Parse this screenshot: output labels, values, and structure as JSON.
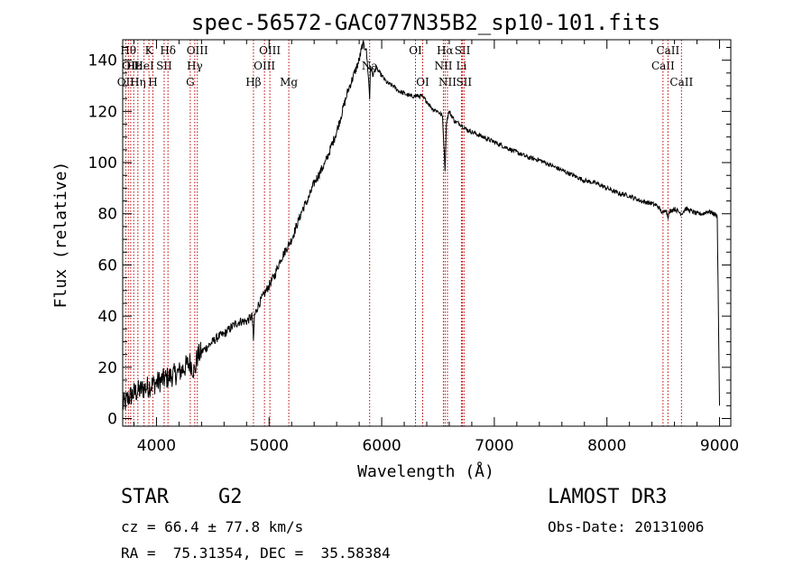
{
  "chart_data": {
    "type": "line",
    "title": "spec-56572-GAC077N35B2_sp10-101.fits",
    "xlabel": "Wavelength (Å)",
    "ylabel": "Flux (relative)",
    "xlim": [
      3700,
      9100
    ],
    "ylim": [
      -3,
      148
    ],
    "xticks": [
      4000,
      5000,
      6000,
      7000,
      8000,
      9000
    ],
    "yticks": [
      0,
      20,
      40,
      60,
      80,
      100,
      120,
      140
    ],
    "series": [
      {
        "name": "flux",
        "x": [
          3700,
          3750,
          3800,
          3850,
          3900,
          3950,
          4000,
          4050,
          4100,
          4150,
          4200,
          4250,
          4300,
          4340,
          4360,
          4400,
          4450,
          4500,
          4550,
          4600,
          4650,
          4700,
          4750,
          4800,
          4850,
          4861,
          4870,
          4900,
          4950,
          5000,
          5050,
          5100,
          5150,
          5200,
          5250,
          5300,
          5350,
          5400,
          5450,
          5500,
          5550,
          5600,
          5650,
          5700,
          5750,
          5800,
          5830,
          5860,
          5880,
          5893,
          5900,
          5920,
          5950,
          6000,
          6050,
          6100,
          6150,
          6200,
          6250,
          6300,
          6350,
          6400,
          6450,
          6500,
          6540,
          6563,
          6575,
          6600,
          6650,
          6700,
          6750,
          6800,
          6900,
          7000,
          7100,
          7200,
          7300,
          7400,
          7500,
          7600,
          7700,
          7800,
          7900,
          8000,
          8100,
          8200,
          8300,
          8400,
          8450,
          8498,
          8520,
          8542,
          8560,
          8600,
          8662,
          8700,
          8750,
          8800,
          8850,
          8900,
          8950,
          8980,
          8990,
          9000
        ],
        "y": [
          5,
          8,
          10,
          11,
          12,
          13,
          14,
          15,
          16,
          17,
          18,
          20,
          22,
          18,
          24,
          26,
          28,
          30,
          32,
          33,
          35,
          37,
          38,
          38,
          40,
          30,
          40,
          44,
          48,
          52,
          56,
          62,
          66,
          70,
          76,
          82,
          86,
          92,
          96,
          100,
          106,
          112,
          120,
          128,
          134,
          140,
          146,
          145,
          135,
          125,
          138,
          134,
          137,
          134,
          131,
          130,
          128,
          127,
          126,
          126,
          126,
          124,
          121,
          120,
          118,
          97,
          116,
          120,
          116,
          115,
          113,
          112,
          110,
          108,
          106,
          104,
          102,
          101,
          99,
          97,
          95,
          93,
          92,
          90,
          88,
          87,
          85,
          84,
          83,
          80,
          82,
          79,
          81,
          82,
          80,
          82,
          81,
          80,
          80,
          81,
          80,
          79,
          40,
          5
        ]
      }
    ],
    "line_markers": [
      {
        "wl": 3750,
        "label": "Hθ",
        "row": 0
      },
      {
        "wl": 3771,
        "label": "OII",
        "row": 1
      },
      {
        "wl": 3727,
        "label": "OII",
        "row": 2
      },
      {
        "wl": 3798,
        "label": "Hε",
        "row": 1
      },
      {
        "wl": 3835,
        "label": "Hη",
        "row": 2
      },
      {
        "wl": 3889,
        "label": "HeI",
        "row": 1
      },
      {
        "wl": 3933,
        "label": "K",
        "row": 0
      },
      {
        "wl": 3968,
        "label": "H",
        "row": 2
      },
      {
        "wl": 4068,
        "label": "SII",
        "row": 1
      },
      {
        "wl": 4102,
        "label": "Hδ",
        "row": 0
      },
      {
        "wl": 4300,
        "label": "G",
        "row": 2
      },
      {
        "wl": 4340,
        "label": "Hγ",
        "row": 1
      },
      {
        "wl": 4363,
        "label": "OIII",
        "row": 0
      },
      {
        "wl": 4861,
        "label": "Hβ",
        "row": 2
      },
      {
        "wl": 4959,
        "label": "OIII",
        "row": 1
      },
      {
        "wl": 5007,
        "label": "OIII",
        "row": 0
      },
      {
        "wl": 5175,
        "label": "Mg",
        "row": 2
      },
      {
        "wl": 5893,
        "label": "Na",
        "row": 1
      },
      {
        "wl": 6300,
        "label": "OI",
        "row": 0
      },
      {
        "wl": 6364,
        "label": "OI",
        "row": 2
      },
      {
        "wl": 6548,
        "label": "NII",
        "row": 1
      },
      {
        "wl": 6563,
        "label": "Hα",
        "row": 0
      },
      {
        "wl": 6584,
        "label": "NII",
        "row": 2
      },
      {
        "wl": 6708,
        "label": "Li",
        "row": 1
      },
      {
        "wl": 6717,
        "label": "SII",
        "row": 0
      },
      {
        "wl": 6731,
        "label": "SII",
        "row": 2
      },
      {
        "wl": 8498,
        "label": "CaII",
        "row": 1
      },
      {
        "wl": 8542,
        "label": "CaII",
        "row": 0
      },
      {
        "wl": 8662,
        "label": "CaII",
        "row": 2
      }
    ]
  },
  "info": {
    "class": "STAR",
    "subclass": "G2",
    "survey": "LAMOST DR3",
    "cz": "cz = 66.4 ± 77.8 km/s",
    "obs_date": "Obs-Date: 20131006",
    "coords": "RA =  75.31354, DEC =  35.58384"
  },
  "colors": {
    "marker": "#c00000",
    "spectrum": "#000000"
  }
}
